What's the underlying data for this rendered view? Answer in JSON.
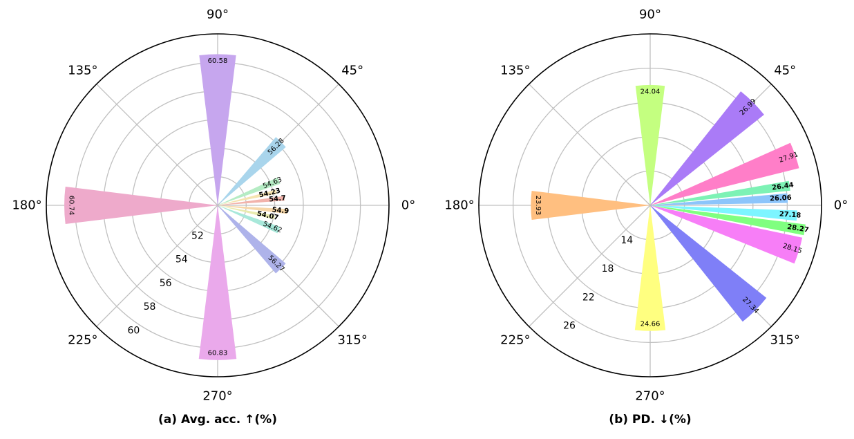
{
  "chart_data": [
    {
      "type": "polar-bar",
      "caption": "(a) Avg. acc. ↑(%)",
      "angle_labels": [
        "0°",
        "45°",
        "90°",
        "135°",
        "180°",
        "225°",
        "270°",
        "315°"
      ],
      "radial_ticks": [
        52,
        54,
        56,
        58,
        60
      ],
      "rlim": [
        50,
        62
      ],
      "bars": [
        {
          "angle": 90,
          "width": 14,
          "value": 60.58,
          "color": "#c6a6ee",
          "bold": false
        },
        {
          "angle": 45,
          "width": 9,
          "value": 56.28,
          "color": "#a9d5ec",
          "bold": false
        },
        {
          "angle": 22,
          "width": 6,
          "value": 54.63,
          "color": "#b5ecc4",
          "bold": false
        },
        {
          "angle": 13,
          "width": 4,
          "value": 54.23,
          "color": "#f5e3b0",
          "bold": true
        },
        {
          "angle": 6,
          "width": 4,
          "value": 54.7,
          "color": "#f2b3ab",
          "bold": true
        },
        {
          "angle": -5,
          "width": 4,
          "value": 54.9,
          "color": "#f7d7a8",
          "bold": true
        },
        {
          "angle": -12,
          "width": 4,
          "value": 54.07,
          "color": "#e9ebb0",
          "bold": true
        },
        {
          "angle": -22,
          "width": 6,
          "value": 54.62,
          "color": "#a8e8da",
          "bold": false
        },
        {
          "angle": -45,
          "width": 9,
          "value": 56.27,
          "color": "#aeb3ea",
          "bold": false
        },
        {
          "angle": 180,
          "width": 14,
          "value": 60.74,
          "color": "#eeaacb",
          "bold": false
        },
        {
          "angle": 270,
          "width": 14,
          "value": 60.83,
          "color": "#eaa9eb",
          "bold": false
        }
      ]
    },
    {
      "type": "polar-bar",
      "caption": "(b) PD. ↓(%)",
      "angle_labels": [
        "0°",
        "45°",
        "90°",
        "135°",
        "180°",
        "225°",
        "270°",
        "315°"
      ],
      "radial_ticks": [
        14,
        18,
        22,
        26
      ],
      "rlim": [
        10,
        30
      ],
      "bars": [
        {
          "angle": 90,
          "width": 14,
          "value": 24.04,
          "color": "#c4ff80",
          "bold": false
        },
        {
          "angle": 45,
          "width": 13,
          "value": 26.99,
          "color": "#aa7bf7",
          "bold": false
        },
        {
          "angle": 19,
          "width": 10,
          "value": 27.91,
          "color": "#ff7ec8",
          "bold": false
        },
        {
          "angle": 8,
          "width": 4,
          "value": 26.44,
          "color": "#7df2b5",
          "bold": true
        },
        {
          "angle": 3,
          "width": 4,
          "value": 26.06,
          "color": "#8cc5fb",
          "bold": true
        },
        {
          "angle": -4,
          "width": 4,
          "value": 27.18,
          "color": "#7df5ff",
          "bold": true
        },
        {
          "angle": -9,
          "width": 4,
          "value": 28.27,
          "color": "#80ff80",
          "bold": true
        },
        {
          "angle": -17,
          "width": 10,
          "value": 28.15,
          "color": "#f77ef7",
          "bold": false
        },
        {
          "angle": -45,
          "width": 13,
          "value": 27.34,
          "color": "#7f7ff7",
          "bold": false
        },
        {
          "angle": 180,
          "width": 14,
          "value": 23.93,
          "color": "#ffbf80",
          "bold": false
        },
        {
          "angle": 270,
          "width": 14,
          "value": 24.66,
          "color": "#ffff80",
          "bold": false
        }
      ]
    }
  ]
}
